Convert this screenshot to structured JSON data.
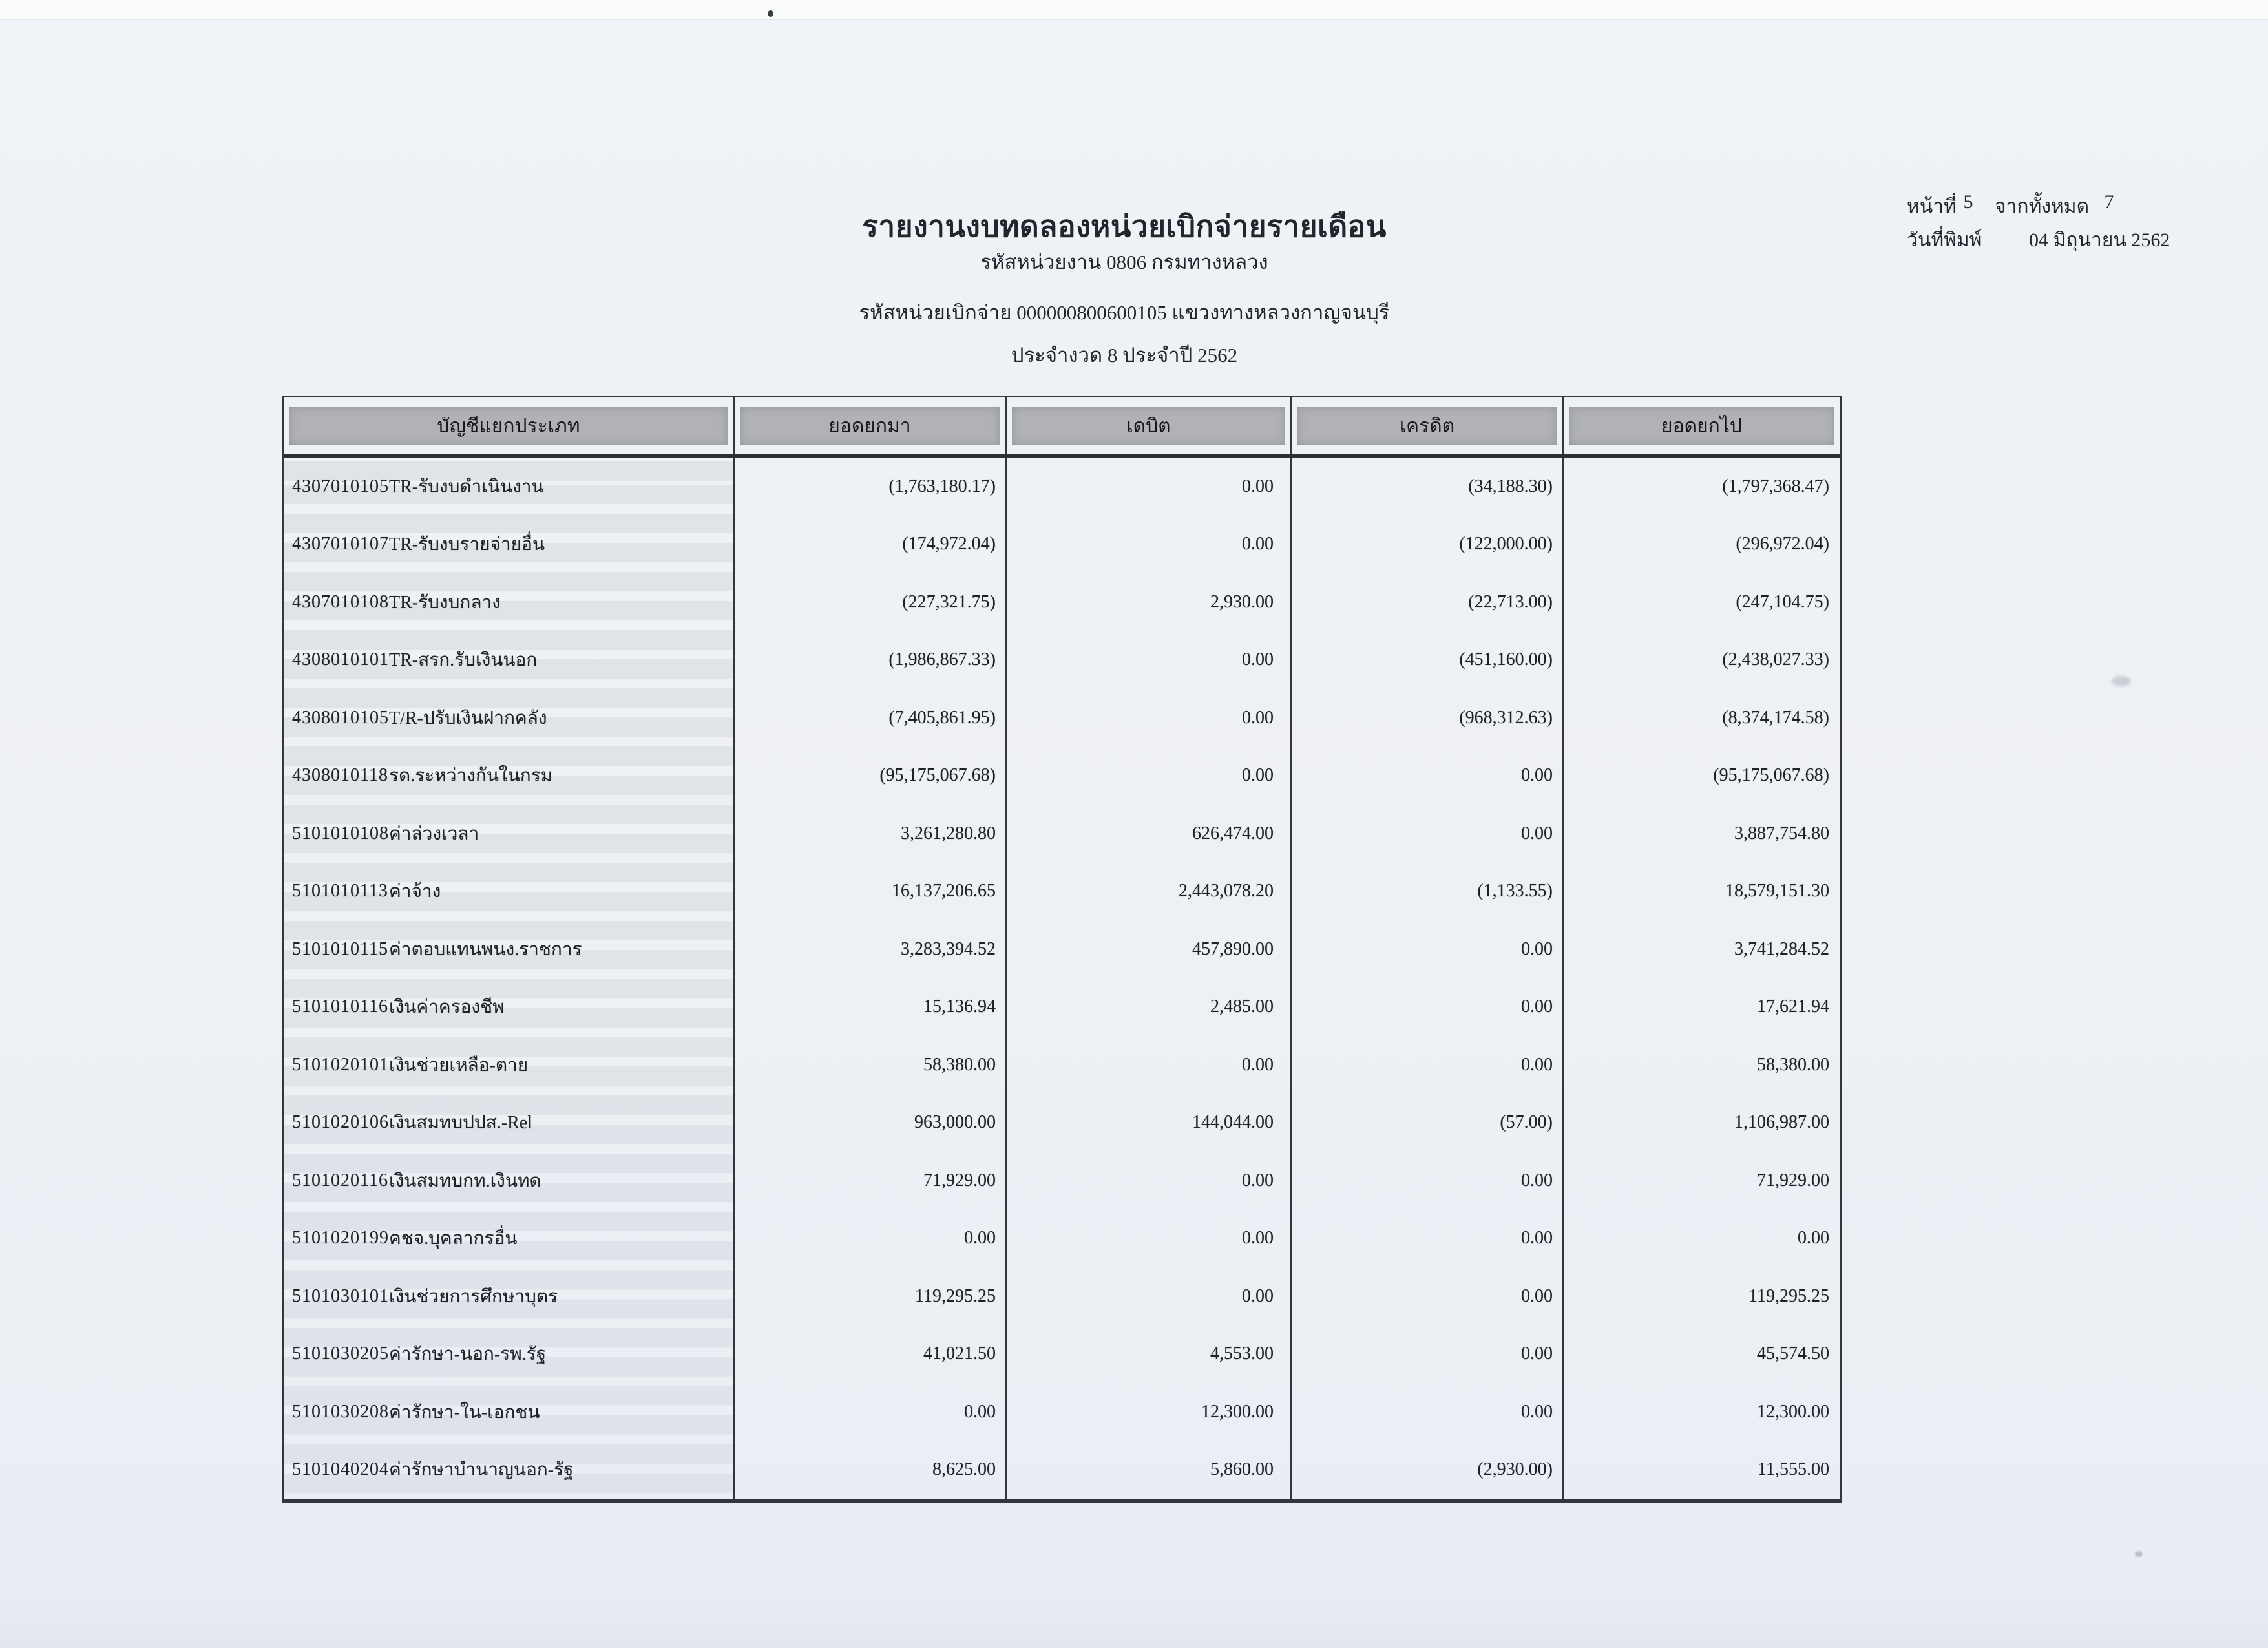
{
  "header": {
    "title": "รายงานงบทดลองหน่วยเบิกจ่ายรายเดือน",
    "agency_line": "รหัสหน่วยงาน 0806 กรมทางหลวง",
    "unit_line": "รหัสหน่วยเบิกจ่าย 000000800600105 แขวงทางหลวงกาญจนบุรี",
    "period_line": "ประจำงวด 8 ประจำปี 2562",
    "page_label": "หน้าที่",
    "page_number": "5",
    "total_label": "จากทั้งหมด",
    "total_pages": "7",
    "print_date_label": "วันที่พิมพ์",
    "print_date": "04 มิถุนายน 2562"
  },
  "table": {
    "columns": [
      "บัญชีแยกประเภท",
      "ยอดยกมา",
      "เดบิต",
      "เครดิต",
      "ยอดยกไป"
    ],
    "rows": [
      {
        "code": "4307010105",
        "name": "TR-รับงบดำเนินงาน",
        "brought_forward": "(1,763,180.17)",
        "debit": "0.00",
        "credit": "(34,188.30)",
        "carried_forward": "(1,797,368.47)"
      },
      {
        "code": "4307010107",
        "name": "TR-รับงบรายจ่ายอื่น",
        "brought_forward": "(174,972.04)",
        "debit": "0.00",
        "credit": "(122,000.00)",
        "carried_forward": "(296,972.04)"
      },
      {
        "code": "4307010108",
        "name": "TR-รับงบกลาง",
        "brought_forward": "(227,321.75)",
        "debit": "2,930.00",
        "credit": "(22,713.00)",
        "carried_forward": "(247,104.75)"
      },
      {
        "code": "4308010101",
        "name": "TR-สรก.รับเงินนอก",
        "brought_forward": "(1,986,867.33)",
        "debit": "0.00",
        "credit": "(451,160.00)",
        "carried_forward": "(2,438,027.33)"
      },
      {
        "code": "4308010105",
        "name": "T/R-ปรับเงินฝากคลัง",
        "brought_forward": "(7,405,861.95)",
        "debit": "0.00",
        "credit": "(968,312.63)",
        "carried_forward": "(8,374,174.58)"
      },
      {
        "code": "4308010118",
        "name": "รด.ระหว่างกันในกรม",
        "brought_forward": "(95,175,067.68)",
        "debit": "0.00",
        "credit": "0.00",
        "carried_forward": "(95,175,067.68)"
      },
      {
        "code": "5101010108",
        "name": "ค่าล่วงเวลา",
        "brought_forward": "3,261,280.80",
        "debit": "626,474.00",
        "credit": "0.00",
        "carried_forward": "3,887,754.80"
      },
      {
        "code": "5101010113",
        "name": "ค่าจ้าง",
        "brought_forward": "16,137,206.65",
        "debit": "2,443,078.20",
        "credit": "(1,133.55)",
        "carried_forward": "18,579,151.30"
      },
      {
        "code": "5101010115",
        "name": "ค่าตอบแทนพนง.ราชการ",
        "brought_forward": "3,283,394.52",
        "debit": "457,890.00",
        "credit": "0.00",
        "carried_forward": "3,741,284.52"
      },
      {
        "code": "5101010116",
        "name": "เงินค่าครองชีพ",
        "brought_forward": "15,136.94",
        "debit": "2,485.00",
        "credit": "0.00",
        "carried_forward": "17,621.94"
      },
      {
        "code": "5101020101",
        "name": "เงินช่วยเหลือ-ตาย",
        "brought_forward": "58,380.00",
        "debit": "0.00",
        "credit": "0.00",
        "carried_forward": "58,380.00"
      },
      {
        "code": "5101020106",
        "name": "เงินสมทบปปส.-Rel",
        "brought_forward": "963,000.00",
        "debit": "144,044.00",
        "credit": "(57.00)",
        "carried_forward": "1,106,987.00"
      },
      {
        "code": "5101020116",
        "name": "เงินสมทบกท.เงินทด",
        "brought_forward": "71,929.00",
        "debit": "0.00",
        "credit": "0.00",
        "carried_forward": "71,929.00"
      },
      {
        "code": "5101020199",
        "name": "คชจ.บุคลากรอื่น",
        "brought_forward": "0.00",
        "debit": "0.00",
        "credit": "0.00",
        "carried_forward": "0.00"
      },
      {
        "code": "5101030101",
        "name": "เงินช่วยการศึกษาบุตร",
        "brought_forward": "119,295.25",
        "debit": "0.00",
        "credit": "0.00",
        "carried_forward": "119,295.25"
      },
      {
        "code": "5101030205",
        "name": "ค่ารักษา-นอก-รพ.รัฐ",
        "brought_forward": "41,021.50",
        "debit": "4,553.00",
        "credit": "0.00",
        "carried_forward": "45,574.50"
      },
      {
        "code": "5101030208",
        "name": "ค่ารักษา-ใน-เอกชน",
        "brought_forward": "0.00",
        "debit": "12,300.00",
        "credit": "0.00",
        "carried_forward": "12,300.00"
      },
      {
        "code": "5101040204",
        "name": "ค่ารักษาบำนาญนอก-รัฐ",
        "brought_forward": "8,625.00",
        "debit": "5,860.00",
        "credit": "(2,930.00)",
        "carried_forward": "11,555.00"
      }
    ]
  }
}
